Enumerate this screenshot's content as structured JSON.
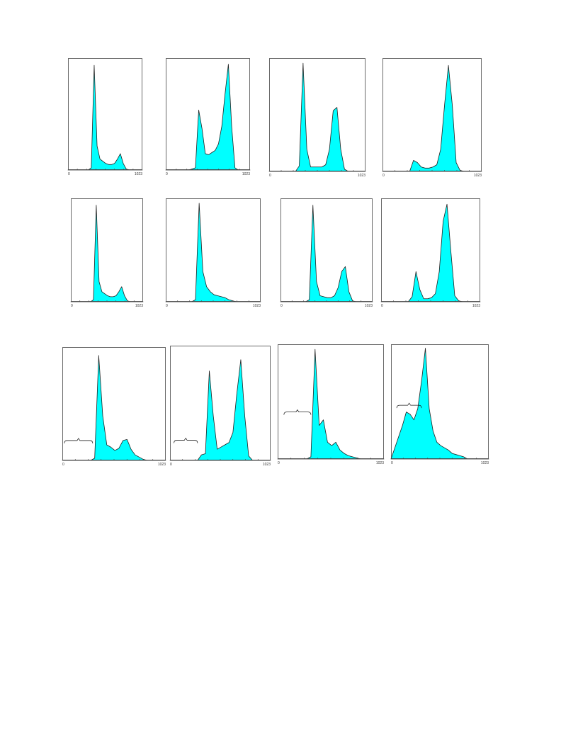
{
  "colors": {
    "fill": "#00ffff",
    "outline": "#222222",
    "frame": "#444444",
    "text": "#333333"
  },
  "chart_data": [
    {
      "type": "area",
      "x": [
        0,
        120,
        160,
        200,
        240,
        280,
        320,
        360,
        400,
        440,
        480,
        520,
        560,
        600,
        640,
        680,
        720,
        760,
        800,
        840,
        880,
        920,
        960,
        1023
      ],
      "values": [
        0,
        0,
        0,
        0,
        0,
        0,
        2,
        96,
        22,
        10,
        8,
        6,
        5,
        5,
        6,
        10,
        15,
        6,
        1,
        0,
        0,
        0,
        0,
        0
      ],
      "xlim": [
        0,
        1023
      ],
      "ylim": [
        0,
        100
      ],
      "tick_labels": [
        "0",
        "1023"
      ],
      "bracket": false
    },
    {
      "type": "area",
      "x": [
        0,
        120,
        160,
        200,
        240,
        280,
        320,
        360,
        400,
        440,
        480,
        520,
        560,
        600,
        640,
        680,
        720,
        760,
        800,
        840,
        880,
        920,
        960,
        1023
      ],
      "values": [
        0,
        0,
        0,
        0,
        0,
        0,
        1,
        2,
        55,
        38,
        15,
        14,
        16,
        18,
        24,
        40,
        70,
        97,
        40,
        2,
        0,
        0,
        0,
        0
      ],
      "xlim": [
        0,
        1023
      ],
      "ylim": [
        0,
        100
      ],
      "tick_labels": [
        "0",
        "1023"
      ],
      "bracket": false
    },
    {
      "type": "area",
      "x": [
        0,
        120,
        160,
        200,
        240,
        280,
        320,
        360,
        400,
        440,
        480,
        520,
        560,
        600,
        640,
        680,
        720,
        760,
        800,
        840,
        880,
        920,
        960,
        1023
      ],
      "values": [
        0,
        0,
        0,
        0,
        0,
        0,
        5,
        98,
        20,
        4,
        4,
        4,
        4,
        6,
        20,
        55,
        58,
        20,
        2,
        0,
        0,
        0,
        0,
        0
      ],
      "xlim": [
        0,
        1023
      ],
      "ylim": [
        0,
        100
      ],
      "tick_labels": [
        "0",
        "1023"
      ],
      "bracket": false
    },
    {
      "type": "area",
      "x": [
        0,
        120,
        160,
        200,
        240,
        280,
        320,
        360,
        400,
        440,
        480,
        520,
        560,
        600,
        640,
        680,
        720,
        760,
        800,
        840,
        880,
        920,
        960,
        1023
      ],
      "values": [
        0,
        0,
        0,
        0,
        0,
        0,
        10,
        8,
        4,
        3,
        3,
        4,
        6,
        20,
        60,
        96,
        60,
        8,
        1,
        0,
        0,
        0,
        0,
        0
      ],
      "xlim": [
        0,
        1023
      ],
      "ylim": [
        0,
        100
      ],
      "tick_labels": [
        "0",
        "1023"
      ],
      "bracket": false
    },
    {
      "type": "area",
      "x": [
        0,
        120,
        160,
        200,
        240,
        280,
        320,
        360,
        400,
        440,
        480,
        520,
        560,
        600,
        640,
        680,
        720,
        760,
        800,
        840,
        880,
        920,
        960,
        1023
      ],
      "values": [
        0,
        0,
        0,
        0,
        0,
        0,
        2,
        96,
        20,
        10,
        8,
        6,
        5,
        5,
        6,
        10,
        15,
        6,
        1,
        0,
        0,
        0,
        0,
        0
      ],
      "xlim": [
        0,
        1023
      ],
      "ylim": [
        0,
        100
      ],
      "tick_labels": [
        "0",
        "1023"
      ],
      "bracket": false
    },
    {
      "type": "area",
      "x": [
        0,
        120,
        160,
        200,
        240,
        280,
        320,
        360,
        400,
        440,
        480,
        520,
        560,
        600,
        640,
        680,
        720,
        760,
        800,
        840,
        880,
        920,
        960,
        1023
      ],
      "values": [
        0,
        0,
        0,
        0,
        0,
        0,
        2,
        98,
        30,
        15,
        10,
        7,
        6,
        5,
        4,
        2,
        1,
        0,
        0,
        0,
        0,
        0,
        0,
        0
      ],
      "xlim": [
        0,
        1023
      ],
      "ylim": [
        0,
        100
      ],
      "tick_labels": [
        "0",
        "1023"
      ],
      "bracket": false
    },
    {
      "type": "area",
      "x": [
        0,
        120,
        160,
        200,
        240,
        280,
        320,
        360,
        400,
        440,
        480,
        520,
        560,
        600,
        640,
        680,
        720,
        760,
        800,
        840,
        880,
        920,
        960,
        1023
      ],
      "values": [
        0,
        0,
        0,
        0,
        0,
        0,
        2,
        96,
        20,
        6,
        5,
        4,
        4,
        6,
        14,
        30,
        35,
        10,
        1,
        0,
        0,
        0,
        0,
        0
      ],
      "xlim": [
        0,
        1023
      ],
      "ylim": [
        0,
        100
      ],
      "tick_labels": [
        "0",
        "1023"
      ],
      "bracket": false
    },
    {
      "type": "area",
      "x": [
        0,
        120,
        160,
        200,
        240,
        280,
        320,
        360,
        400,
        440,
        480,
        520,
        560,
        600,
        640,
        680,
        720,
        760,
        800,
        840,
        880,
        920,
        960,
        1023
      ],
      "values": [
        0,
        0,
        0,
        0,
        0,
        0,
        5,
        30,
        12,
        3,
        3,
        4,
        8,
        30,
        80,
        97,
        50,
        6,
        1,
        0,
        0,
        0,
        0,
        0
      ],
      "xlim": [
        0,
        1023
      ],
      "ylim": [
        0,
        100
      ],
      "tick_labels": [
        "0",
        "1023"
      ],
      "bracket": false
    },
    {
      "type": "area",
      "x": [
        0,
        120,
        160,
        200,
        240,
        280,
        320,
        360,
        400,
        440,
        480,
        520,
        560,
        600,
        640,
        680,
        720,
        760,
        800,
        840,
        880,
        920,
        960,
        1023
      ],
      "values": [
        0,
        0,
        0,
        0,
        0,
        0,
        2,
        95,
        40,
        14,
        12,
        9,
        11,
        18,
        19,
        10,
        5,
        3,
        1,
        0,
        0,
        0,
        0,
        0
      ],
      "xlim": [
        0,
        1023
      ],
      "ylim": [
        0,
        100
      ],
      "tick_labels": [
        "0",
        "1023"
      ],
      "bracket": true,
      "bracket_x": [
        20,
        300
      ],
      "bracket_y": 18
    },
    {
      "type": "area",
      "x": [
        0,
        120,
        160,
        200,
        240,
        280,
        320,
        360,
        400,
        440,
        480,
        520,
        560,
        600,
        640,
        680,
        720,
        760,
        800,
        840,
        880,
        920,
        960,
        1023
      ],
      "values": [
        0,
        0,
        0,
        0,
        0,
        0,
        5,
        6,
        80,
        40,
        10,
        12,
        14,
        16,
        25,
        60,
        90,
        40,
        4,
        0,
        0,
        0,
        0,
        0
      ],
      "xlim": [
        0,
        1023
      ],
      "ylim": [
        0,
        100
      ],
      "tick_labels": [
        "0",
        "1023"
      ],
      "bracket": true,
      "bracket_x": [
        40,
        280
      ],
      "bracket_y": 18
    },
    {
      "type": "area",
      "x": [
        0,
        120,
        160,
        200,
        240,
        280,
        320,
        360,
        400,
        440,
        480,
        520,
        560,
        600,
        640,
        680,
        720,
        760,
        800,
        840,
        880,
        920,
        960,
        1023
      ],
      "values": [
        0,
        0,
        0,
        0,
        0,
        0,
        2,
        98,
        30,
        35,
        15,
        12,
        15,
        8,
        5,
        3,
        2,
        1,
        0,
        0,
        0,
        0,
        0,
        0
      ],
      "xlim": [
        0,
        1023
      ],
      "ylim": [
        0,
        100
      ],
      "tick_labels": [
        "0",
        "1023"
      ],
      "bracket": true,
      "bracket_x": [
        60,
        320
      ],
      "bracket_y": 42
    },
    {
      "type": "area",
      "x": [
        0,
        120,
        160,
        200,
        240,
        280,
        320,
        360,
        400,
        440,
        480,
        520,
        560,
        600,
        640,
        680,
        720,
        760,
        800,
        840,
        880,
        920,
        960,
        1023
      ],
      "values": [
        0,
        30,
        42,
        40,
        35,
        45,
        70,
        99,
        45,
        25,
        15,
        12,
        10,
        8,
        5,
        4,
        3,
        2,
        0,
        0,
        0,
        0,
        0,
        0
      ],
      "xlim": [
        0,
        1023
      ],
      "ylim": [
        0,
        100
      ],
      "tick_labels": [
        "0",
        "1023"
      ],
      "bracket": true,
      "bracket_x": [
        60,
        320
      ],
      "bracket_y": 48
    }
  ]
}
